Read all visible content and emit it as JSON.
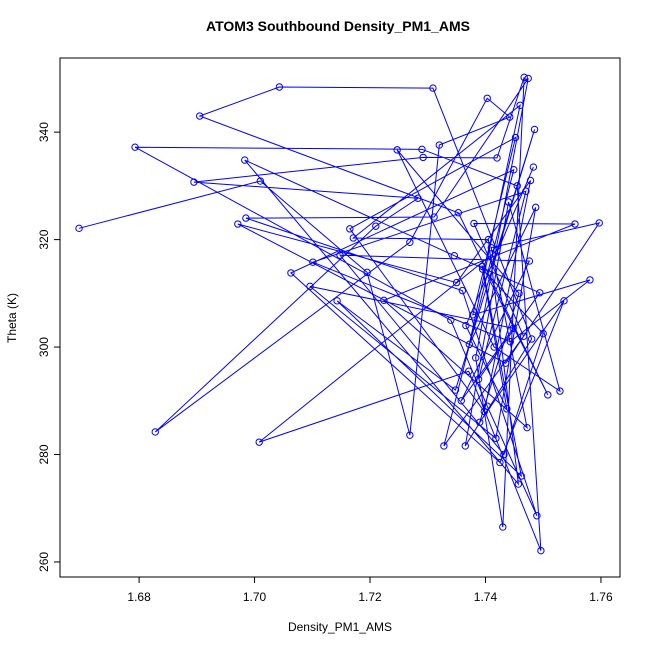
{
  "chart_data": {
    "type": "line",
    "title": "ATOM3 Southbound Density_PM1_AMS",
    "x_label": "Density_PM1_AMS",
    "y_label": "Theta (K)",
    "xlim": [
      1.6663,
      1.7633
    ],
    "ylim": [
      257.2,
      353.8
    ],
    "xticks": [
      1.68,
      {
        "value": 1.7,
        "label": "1.70"
      },
      1.72,
      1.74,
      1.76
    ],
    "yticks": [
      260,
      280,
      300,
      320,
      340
    ],
    "grid": false,
    "series": [
      {
        "name": "Theta",
        "color": "#0000ff",
        "x": [
          1.6696,
          1.701,
          1.7195,
          1.7269,
          1.732,
          1.7442,
          1.7403,
          1.7269,
          1.6828,
          1.721,
          1.7283,
          1.6895,
          1.7292,
          1.742,
          1.7467,
          1.743,
          1.7383,
          1.7474,
          1.7311,
          1.6985,
          1.736,
          1.7489,
          1.7403,
          1.734,
          1.6793,
          1.729,
          1.7455,
          1.7496,
          1.7371,
          1.7008,
          1.742,
          1.7485,
          1.7348,
          1.7143,
          1.7462,
          1.7395,
          1.7508,
          1.7353,
          1.6905,
          1.7043,
          1.7309,
          1.748,
          1.7365,
          1.744,
          1.7529,
          1.7415,
          1.7247,
          1.7458,
          1.739,
          1.7536,
          1.7425,
          1.7063,
          1.7449,
          1.7328,
          1.7466,
          1.738,
          1.7555,
          1.7224,
          1.7472,
          1.741,
          1.7597,
          1.7435,
          1.6971,
          1.735,
          1.7478,
          1.7398,
          1.7165,
          1.7452,
          1.7378,
          1.7581,
          1.7443,
          1.7101,
          1.747,
          1.7388,
          1.7494,
          1.7346,
          1.6983,
          1.7457,
          1.7405,
          1.7171,
          1.746,
          1.7372,
          1.7487,
          1.7418,
          1.7096,
          1.7448,
          1.7358,
          1.7476,
          1.7148,
          1.7432,
          1.75,
          1.7395,
          1.7437,
          1.7366,
          1.7483
        ],
        "y": [
          322.1,
          330.9,
          313.9,
          283.6,
          337.6,
          342.8,
          346.3,
          319.5,
          284.2,
          322.5,
          327.7,
          330.7,
          335.3,
          335.2,
          350.2,
          266.5,
          298.0,
          350.0,
          324.2,
          324.0,
          310.5,
          268.6,
          289.0,
          305.0,
          337.2,
          336.8,
          330.0,
          262.1,
          295.5,
          282.3,
          318.0,
          340.5,
          292.0,
          308.6,
          276.0,
          315.0,
          291.1,
          325.0,
          343.0,
          348.4,
          348.2,
          301.5,
          281.6,
          327.0,
          291.8,
          300.0,
          336.7,
          310.0,
          286.0,
          308.6,
          278.5,
          313.8,
          333.0,
          281.6,
          302.0,
          323.0,
          322.9,
          308.7,
          285.0,
          318.5,
          323.1,
          297.0,
          322.9,
          312.0,
          331.0,
          288.0,
          322.0,
          339.0,
          306.0,
          312.5,
          301.0,
          315.8,
          329.0,
          294.0,
          310.1,
          317.0,
          334.8,
          274.5,
          320.0,
          320.3,
          345.0,
          300.5,
          326.0,
          283.0,
          311.3,
          303.5,
          290.0,
          316.0,
          317.1,
          280.0,
          302.5,
          314.5,
          288.5,
          304.0,
          333.5
        ]
      }
    ]
  }
}
